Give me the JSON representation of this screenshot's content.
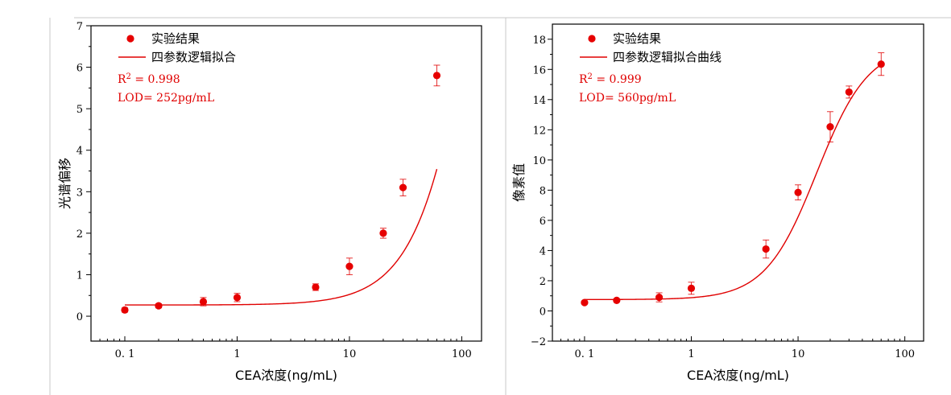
{
  "colors": {
    "fit": "#e00000",
    "point": "#e60000",
    "axis": "#000000",
    "stats": "#e00000"
  },
  "chart_data": [
    {
      "type": "scatter",
      "xscale": "log",
      "xlim": [
        0.05,
        150
      ],
      "ylim": [
        -0.6,
        7
      ],
      "xticks": [
        0.1,
        1,
        10,
        100
      ],
      "xtick_labels": [
        "0. 1",
        "1",
        "10",
        "100"
      ],
      "yticks": [
        0,
        1,
        2,
        3,
        4,
        5,
        6,
        7
      ],
      "ytick_labels": [
        "0",
        "1",
        "2",
        "3",
        "4",
        "5",
        "6",
        "7"
      ],
      "xlabel": "CEA浓度(ng/mL)",
      "ylabel": "光谱偏移",
      "legend": {
        "position": "top-left",
        "points": "实验结果",
        "fit": "四参数逻辑拟合"
      },
      "stats": {
        "r2_label": "R",
        "r2_sup": "2",
        "r2_value": " = 0.998",
        "lod": "LOD= 252pg/mL"
      },
      "points": [
        {
          "x": 0.1,
          "y": 0.15,
          "err": 0.05
        },
        {
          "x": 0.2,
          "y": 0.25,
          "err": 0.05
        },
        {
          "x": 0.5,
          "y": 0.35,
          "err": 0.1
        },
        {
          "x": 1,
          "y": 0.45,
          "err": 0.1
        },
        {
          "x": 5,
          "y": 0.7,
          "err": 0.08
        },
        {
          "x": 10,
          "y": 1.2,
          "err": 0.2
        },
        {
          "x": 20,
          "y": 2.0,
          "err": 0.12
        },
        {
          "x": 30,
          "y": 3.1,
          "err": 0.2
        },
        {
          "x": 60,
          "y": 5.8,
          "err": 0.25
        }
      ],
      "fit": {
        "A": 0.27,
        "D": 25,
        "C": 210,
        "B": 1.5
      }
    },
    {
      "type": "scatter",
      "xscale": "log",
      "xlim": [
        0.05,
        150
      ],
      "ylim": [
        -2,
        19
      ],
      "xticks": [
        0.1,
        1,
        10,
        100
      ],
      "xtick_labels": [
        "0. 1",
        "1",
        "10",
        "100"
      ],
      "yticks": [
        -2,
        0,
        2,
        4,
        6,
        8,
        10,
        12,
        14,
        16,
        18
      ],
      "ytick_labels": [
        "−2",
        "0",
        "2",
        "4",
        "6",
        "8",
        "10",
        "12",
        "14",
        "16",
        "18"
      ],
      "xlabel": "CEA浓度(ng/mL)",
      "ylabel": "像素值",
      "legend": {
        "position": "top-left",
        "points": "实验结果",
        "fit": "四参数逻辑拟合曲线"
      },
      "stats": {
        "r2_label": "R",
        "r2_sup": "2",
        "r2_value": " = 0.999",
        "lod": "LOD= 560pg/mL"
      },
      "points": [
        {
          "x": 0.1,
          "y": 0.55,
          "err": 0.1
        },
        {
          "x": 0.2,
          "y": 0.7,
          "err": 0.1
        },
        {
          "x": 0.5,
          "y": 0.9,
          "err": 0.3
        },
        {
          "x": 1,
          "y": 1.5,
          "err": 0.4
        },
        {
          "x": 5,
          "y": 4.1,
          "err": 0.6
        },
        {
          "x": 10,
          "y": 7.85,
          "err": 0.5
        },
        {
          "x": 20,
          "y": 12.2,
          "err": 1.0
        },
        {
          "x": 30,
          "y": 14.5,
          "err": 0.4
        },
        {
          "x": 60,
          "y": 16.35,
          "err": 0.75
        }
      ],
      "fit": {
        "A": 0.75,
        "D": 17.6,
        "C": 15,
        "B": 1.8
      }
    }
  ]
}
